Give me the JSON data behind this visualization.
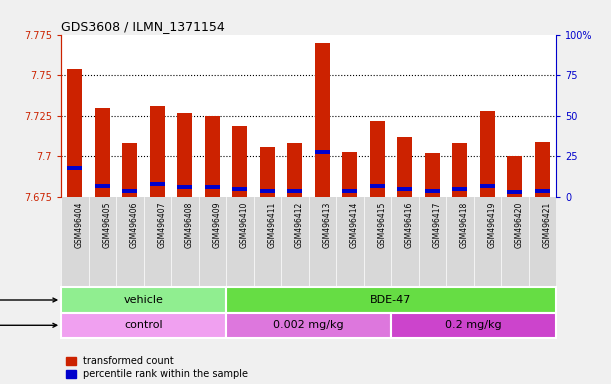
{
  "title": "GDS3608 / ILMN_1371154",
  "samples": [
    "GSM496404",
    "GSM496405",
    "GSM496406",
    "GSM496407",
    "GSM496408",
    "GSM496409",
    "GSM496410",
    "GSM496411",
    "GSM496412",
    "GSM496413",
    "GSM496414",
    "GSM496415",
    "GSM496416",
    "GSM496417",
    "GSM496418",
    "GSM496419",
    "GSM496420",
    "GSM496421"
  ],
  "red_values": [
    7.754,
    7.73,
    7.708,
    7.731,
    7.727,
    7.725,
    7.719,
    7.706,
    7.708,
    7.77,
    7.703,
    7.722,
    7.712,
    7.702,
    7.708,
    7.728,
    7.7,
    7.709
  ],
  "blue_values": [
    7.693,
    7.682,
    7.679,
    7.683,
    7.681,
    7.681,
    7.68,
    7.679,
    7.679,
    7.703,
    7.679,
    7.682,
    7.68,
    7.679,
    7.68,
    7.682,
    7.678,
    7.679
  ],
  "ymin": 7.675,
  "ymax": 7.775,
  "yticks": [
    7.675,
    7.7,
    7.725,
    7.75,
    7.775
  ],
  "ytick_labels": [
    "7.675",
    "7.7",
    "7.725",
    "7.75",
    "7.775"
  ],
  "right_yticks": [
    0,
    25,
    50,
    75,
    100
  ],
  "right_ytick_labels": [
    "0",
    "25",
    "50",
    "75",
    "100%"
  ],
  "gridlines": [
    7.7,
    7.725,
    7.75
  ],
  "bar_width": 0.55,
  "agent_groups": [
    {
      "label": "vehicle",
      "start": 0,
      "end": 6,
      "color": "#90ee90"
    },
    {
      "label": "BDE-47",
      "start": 6,
      "end": 18,
      "color": "#66dd44"
    }
  ],
  "dose_groups": [
    {
      "label": "control",
      "start": 0,
      "end": 6,
      "color": "#f0a0f0"
    },
    {
      "label": "0.002 mg/kg",
      "start": 6,
      "end": 12,
      "color": "#dd77dd"
    },
    {
      "label": "0.2 mg/kg",
      "start": 12,
      "end": 18,
      "color": "#cc44cc"
    }
  ],
  "red_color": "#cc2200",
  "blue_color": "#0000cc",
  "plot_bg": "#ffffff",
  "left_axis_color": "#cc2200",
  "right_axis_color": "#0000cc",
  "xtick_bg": "#d8d8d8",
  "legend_red_label": "transformed count",
  "legend_blue_label": "percentile rank within the sample"
}
